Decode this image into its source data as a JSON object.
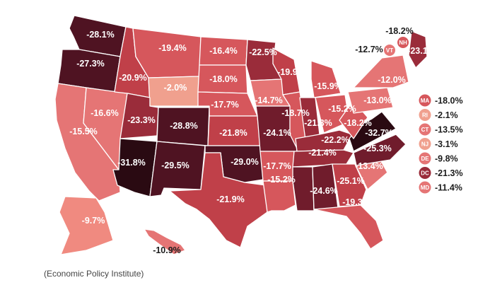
{
  "source": "(Economic Policy Institute)",
  "colors": {
    "darkest": "#2a0a12",
    "very_dark": "#4f1322",
    "dark": "#701c2c",
    "mid_dark": "#9a2c3a",
    "mid": "#c04049",
    "mid_light": "#d6575c",
    "light": "#e57575",
    "lightest": "#f0a08e"
  },
  "states": [
    {
      "id": "WA",
      "value": "-28.1%",
      "color": "#4f1322"
    },
    {
      "id": "OR",
      "value": "-27.3%",
      "color": "#4f1322"
    },
    {
      "id": "CA",
      "value": "-15.5%",
      "color": "#e57575"
    },
    {
      "id": "NV",
      "value": "-16.6%",
      "color": "#e57575"
    },
    {
      "id": "ID",
      "value": "-20.9%",
      "color": "#c04049"
    },
    {
      "id": "MT",
      "value": "-19.4%",
      "color": "#d6575c"
    },
    {
      "id": "WY",
      "value": "-2.0%",
      "color": "#f0a08e"
    },
    {
      "id": "UT",
      "value": "-23.3%",
      "color": "#9a2c3a"
    },
    {
      "id": "AZ",
      "value": "-31.8%",
      "color": "#2a0a12"
    },
    {
      "id": "CO",
      "value": "-28.8%",
      "color": "#4f1322"
    },
    {
      "id": "NM",
      "value": "-29.5%",
      "color": "#4f1322"
    },
    {
      "id": "ND",
      "value": "-16.4%",
      "color": "#d6575c"
    },
    {
      "id": "SD",
      "value": "-18.0%",
      "color": "#d6575c"
    },
    {
      "id": "NE",
      "value": "-17.7%",
      "color": "#d6575c"
    },
    {
      "id": "KS",
      "value": "-21.8%",
      "color": "#c04049"
    },
    {
      "id": "OK",
      "value": "-29.0%",
      "color": "#4f1322"
    },
    {
      "id": "TX",
      "value": "-21.9%",
      "color": "#c04049"
    },
    {
      "id": "MN",
      "value": "-22.5%",
      "color": "#9a2c3a"
    },
    {
      "id": "IA",
      "value": "-14.7%",
      "color": "#e57575"
    },
    {
      "id": "MO",
      "value": "-24.1%",
      "color": "#701c2c"
    },
    {
      "id": "AR",
      "value": "-17.7%",
      "color": "#d6575c"
    },
    {
      "id": "LA",
      "value": "-15.2%",
      "color": "#d6575c"
    },
    {
      "id": "WI",
      "value": "-19.9%",
      "color": "#c04049"
    },
    {
      "id": "IL",
      "value": "-18.7%",
      "color": "#d6575c"
    },
    {
      "id": "MI",
      "value": "-15.9%",
      "color": "#d6575c"
    },
    {
      "id": "IN",
      "value": "-21.3%",
      "color": "#9a2c3a"
    },
    {
      "id": "OH",
      "value": "-15.2%",
      "color": "#d6575c"
    },
    {
      "id": "KY",
      "value": "-22.2%",
      "color": "#9a2c3a"
    },
    {
      "id": "TN",
      "value": "-21.4%",
      "color": "#9a2c3a"
    },
    {
      "id": "MS",
      "value": "-24.6%",
      "color": "#701c2c"
    },
    {
      "id": "AL",
      "value": "-25.1%",
      "color": "#701c2c"
    },
    {
      "id": "GA",
      "value": "-19.3%",
      "color": "#c04049"
    },
    {
      "id": "FL",
      "value": "",
      "color": "#d6575c"
    },
    {
      "id": "SC",
      "value": "-13.4%",
      "color": "#e57575"
    },
    {
      "id": "NC",
      "value": "-25.3%",
      "color": "#701c2c"
    },
    {
      "id": "VA",
      "value": "-32.7%",
      "color": "#2a0a12"
    },
    {
      "id": "WV",
      "value": "-18.2%",
      "color": "#d6575c"
    },
    {
      "id": "PA",
      "value": "-13.0%",
      "color": "#e57575"
    },
    {
      "id": "NY",
      "value": "-12.0%",
      "color": "#e57575"
    },
    {
      "id": "ME",
      "value": "-23.1%",
      "color": "#9a2c3a"
    },
    {
      "id": "AK",
      "value": "-9.7%",
      "color": "#f08a80"
    },
    {
      "id": "HI",
      "value": "-10.9%",
      "color": "#e57575"
    }
  ],
  "callouts": [
    {
      "id": "NH",
      "value": "-18.2%",
      "color": "#d6575c"
    },
    {
      "id": "VT",
      "value": "-12.7%",
      "color": "#e57575"
    }
  ],
  "legend": [
    {
      "abbr": "MA",
      "value": "-18.0%",
      "color": "#d6575c"
    },
    {
      "abbr": "RI",
      "value": "-2.1%",
      "color": "#f0a08e"
    },
    {
      "abbr": "CT",
      "value": "-13.5%",
      "color": "#e57575"
    },
    {
      "abbr": "NJ",
      "value": "-3.1%",
      "color": "#f0a08e"
    },
    {
      "abbr": "DE",
      "value": "-9.8%",
      "color": "#e57575"
    },
    {
      "abbr": "DC",
      "value": "-21.3%",
      "color": "#9a2c3a"
    },
    {
      "abbr": "MD",
      "value": "-11.4%",
      "color": "#e57575"
    }
  ]
}
